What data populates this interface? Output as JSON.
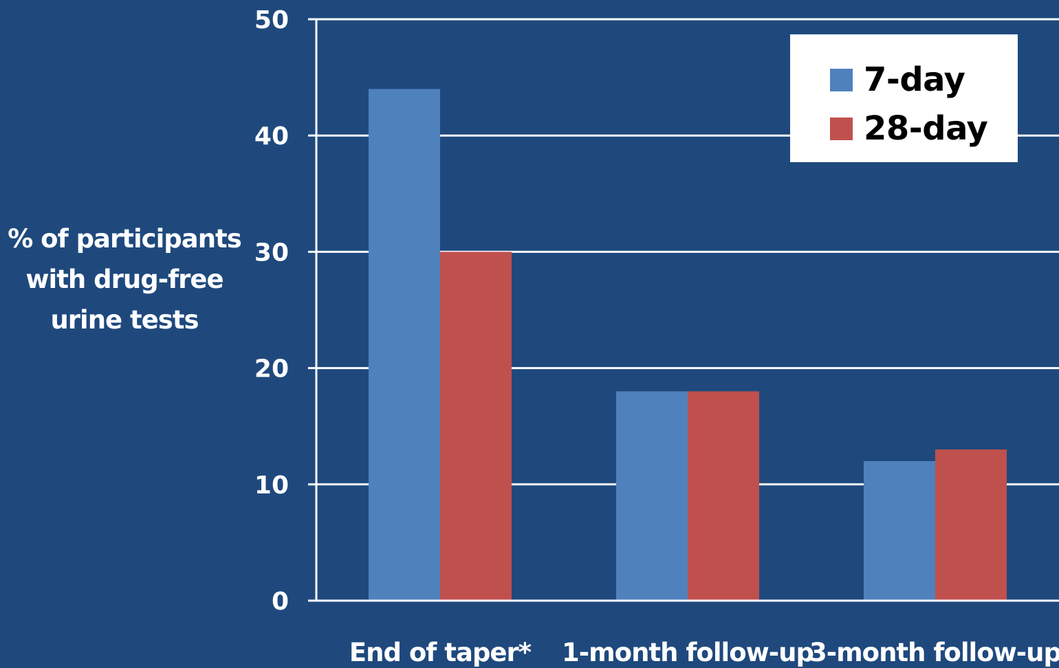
{
  "chart_data": {
    "type": "bar",
    "ylabel_lines": [
      "% of participants",
      "with drug-free",
      "urine tests"
    ],
    "xlabel": "",
    "categories": [
      "End of taper*",
      "1-month follow-up",
      "3-month follow-up"
    ],
    "series": [
      {
        "name": "7-day",
        "values": [
          44,
          18,
          12
        ],
        "color": "#4f81bd"
      },
      {
        "name": "28-day",
        "values": [
          30,
          18,
          13
        ],
        "color": "#c0504d"
      }
    ],
    "ylim": [
      0,
      50
    ],
    "yticks": [
      0,
      10,
      20,
      30,
      40,
      50
    ],
    "grid": true,
    "legend_position": "top-right"
  },
  "colors": {
    "background": "#1f497d",
    "axis": "#ffffff",
    "gridline": "#ffffff"
  }
}
